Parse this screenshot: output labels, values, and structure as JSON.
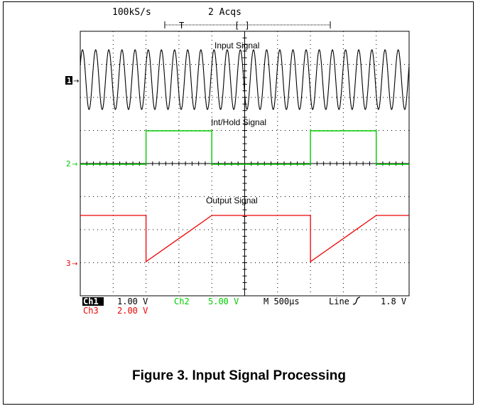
{
  "header": {
    "sample_rate": "100kS/s",
    "acquisitions": "2 Acqs"
  },
  "trigger": {
    "marker": "T",
    "bracket": "[ ]"
  },
  "figure": {
    "caption": "Figure 3. Input Signal Processing"
  },
  "colors": {
    "ch1": "#000000",
    "ch2": "#00cc00",
    "ch3": "#ee0000",
    "grid": "#000000"
  },
  "chart_data": {
    "type": "line",
    "title": "",
    "x": {
      "units": "µs",
      "range": [
        0,
        5000
      ],
      "per_division": 500,
      "divisions": 10
    },
    "y": {
      "divisions": 8,
      "grid": "dotted"
    },
    "series": [
      {
        "name": "Input Signal",
        "channel": "1",
        "waveform": "sine",
        "cycles": 25,
        "scale": "1.00 V"
      },
      {
        "name": "Int/Hold Signal",
        "channel": "2",
        "waveform": "square",
        "high_intervals_us": [
          [
            1000,
            2000
          ],
          [
            3500,
            4500
          ]
        ],
        "scale": "5.00 V"
      },
      {
        "name": "Output Signal",
        "channel": "3",
        "waveform": "sample-hold-ramp",
        "drop_times_us": [
          1000,
          3500
        ],
        "recover_times_us": [
          2000,
          4500
        ],
        "scale": "2.00 V"
      }
    ]
  },
  "readout": {
    "ch1_label": "Ch1",
    "ch1_scale": "1.00 V",
    "ch2_label": "Ch2",
    "ch2_scale": "5.00 V",
    "ch3_label": "Ch3",
    "ch3_scale": "2.00 V",
    "timebase": "M 500µs",
    "trigger_source": "Line",
    "trigger_level": "1.8 V"
  },
  "markers": {
    "ch1": "1",
    "ch2": "2",
    "ch3": "3"
  }
}
